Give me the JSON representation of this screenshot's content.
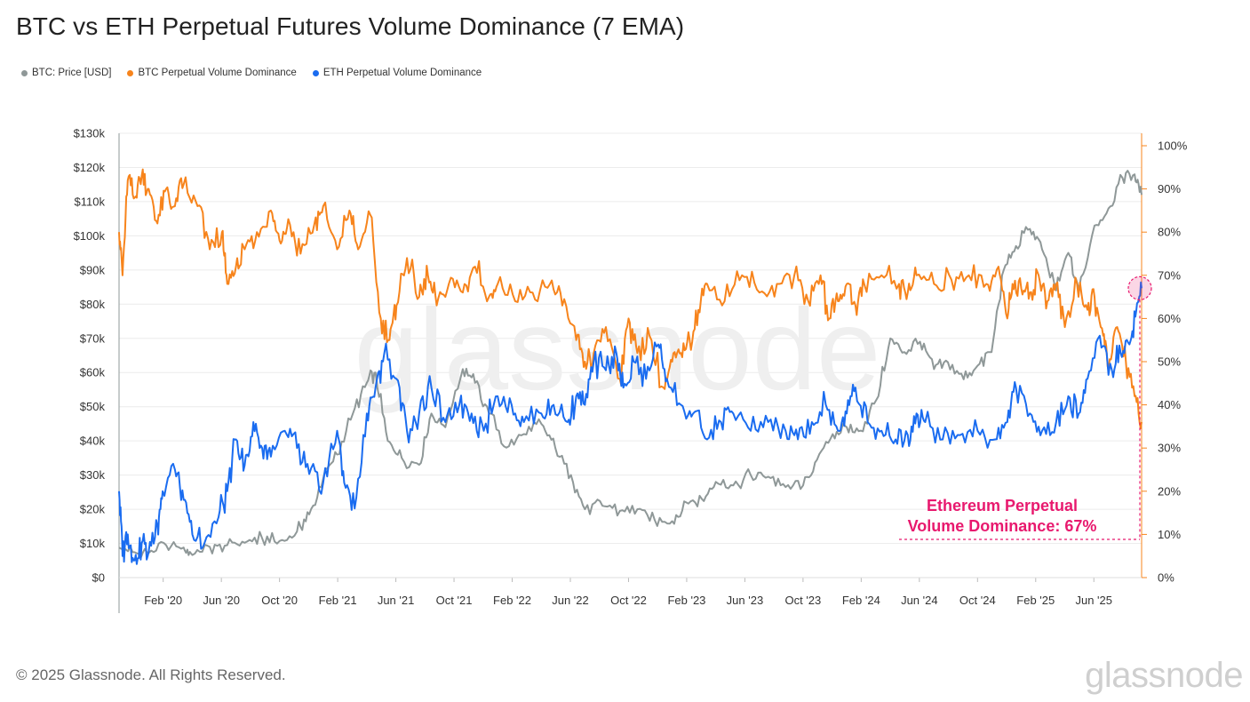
{
  "chart_data": {
    "type": "line",
    "title": "BTC vs ETH Perpetual Futures Volume Dominance (7 EMA)",
    "watermark": "glassnode",
    "legend": [
      {
        "name": "BTC: Price [USD]",
        "color": "#8f9898"
      },
      {
        "name": "BTC Perpetual Volume Dominance",
        "color": "#f7841c"
      },
      {
        "name": "ETH Perpetual Volume Dominance",
        "color": "#1a6cf0"
      }
    ],
    "x_ticks": [
      "Feb '20",
      "Jun '20",
      "Oct '20",
      "Feb '21",
      "Jun '21",
      "Oct '21",
      "Feb '22",
      "Jun '22",
      "Oct '22",
      "Feb '23",
      "Jun '23",
      "Oct '23",
      "Feb '24",
      "Jun '24",
      "Oct '24",
      "Feb '25",
      "Jun '25"
    ],
    "x_range": [
      2019.83,
      2025.69
    ],
    "y_left_ticks": [
      "$0",
      "$10k",
      "$20k",
      "$30k",
      "$40k",
      "$50k",
      "$60k",
      "$70k",
      "$80k",
      "$90k",
      "$100k",
      "$110k",
      "$120k",
      "$130k"
    ],
    "y_left_range": [
      0,
      130000
    ],
    "y_right_ticks": [
      "0%",
      "10%",
      "20%",
      "30%",
      "40%",
      "50%",
      "60%",
      "70%",
      "80%",
      "90%",
      "100%"
    ],
    "y_right_range": [
      0,
      100
    ],
    "series": [
      {
        "name": "BTC: Price [USD]",
        "axis": "left",
        "color": "#8f9898",
        "x": [
          2019.83,
          2019.92,
          2020.0,
          2020.1,
          2020.2,
          2020.25,
          2020.35,
          2020.45,
          2020.55,
          2020.65,
          2020.75,
          2020.85,
          2020.92,
          2021.0,
          2021.08,
          2021.17,
          2021.25,
          2021.3,
          2021.37,
          2021.45,
          2021.55,
          2021.62,
          2021.7,
          2021.8,
          2021.87,
          2021.95,
          2022.05,
          2022.15,
          2022.25,
          2022.33,
          2022.42,
          2022.5,
          2022.6,
          2022.7,
          2022.8,
          2022.9,
          2023.0,
          2023.08,
          2023.17,
          2023.25,
          2023.35,
          2023.45,
          2023.55,
          2023.65,
          2023.75,
          2023.83,
          2023.92,
          2024.0,
          2024.08,
          2024.17,
          2024.25,
          2024.33,
          2024.42,
          2024.5,
          2024.58,
          2024.67,
          2024.75,
          2024.83,
          2024.9,
          2024.97,
          2025.05,
          2025.12,
          2025.2,
          2025.27,
          2025.33,
          2025.42,
          2025.5,
          2025.58,
          2025.65,
          2025.69
        ],
        "values": [
          8800,
          7400,
          7200,
          9500,
          8800,
          6600,
          9000,
          9500,
          10200,
          11500,
          10700,
          13500,
          18500,
          29000,
          36000,
          48000,
          57000,
          60000,
          40000,
          35000,
          33000,
          48000,
          44000,
          61000,
          57000,
          48000,
          38000,
          42000,
          45000,
          38000,
          30000,
          20000,
          21000,
          19500,
          20000,
          16800,
          16500,
          22000,
          23000,
          28000,
          27000,
          30000,
          29500,
          26500,
          27000,
          34500,
          42000,
          44000,
          43000,
          52000,
          70000,
          66000,
          69000,
          61000,
          63000,
          58000,
          62000,
          66000,
          90000,
          97000,
          102000,
          96000,
          84000,
          95000,
          84000,
          103000,
          108000,
          117000,
          118000,
          112000
        ]
      },
      {
        "name": "BTC Perpetual Volume Dominance",
        "axis": "right",
        "color": "#f7841c",
        "x": [
          2019.83,
          2019.85,
          2019.88,
          2019.92,
          2019.96,
          2020.0,
          2020.05,
          2020.1,
          2020.15,
          2020.2,
          2020.28,
          2020.35,
          2020.42,
          2020.45,
          2020.5,
          2020.55,
          2020.62,
          2020.7,
          2020.75,
          2020.8,
          2020.87,
          2020.95,
          2021.0,
          2021.08,
          2021.15,
          2021.2,
          2021.27,
          2021.33,
          2021.38,
          2021.42,
          2021.48,
          2021.55,
          2021.6,
          2021.65,
          2021.72,
          2021.8,
          2021.87,
          2021.95,
          2022.0,
          2022.1,
          2022.2,
          2022.3,
          2022.37,
          2022.45,
          2022.5,
          2022.55,
          2022.62,
          2022.7,
          2022.75,
          2022.8,
          2022.87,
          2022.95,
          2023.0,
          2023.05,
          2023.1,
          2023.15,
          2023.2,
          2023.3,
          2023.4,
          2023.5,
          2023.6,
          2023.7,
          2023.78,
          2023.85,
          2023.9,
          2023.95,
          2024.0,
          2024.05,
          2024.1,
          2024.2,
          2024.3,
          2024.35,
          2024.4,
          2024.5,
          2024.6,
          2024.7,
          2024.8,
          2024.87,
          2024.92,
          2024.95,
          2025.0,
          2025.05,
          2025.1,
          2025.15,
          2025.2,
          2025.25,
          2025.32,
          2025.38,
          2025.42,
          2025.47,
          2025.5,
          2025.55,
          2025.6,
          2025.65,
          2025.69
        ],
        "values": [
          80,
          70,
          92,
          88,
          93,
          90,
          82,
          90,
          86,
          91,
          86,
          76,
          80,
          68,
          72,
          76,
          80,
          85,
          78,
          83,
          75,
          82,
          86,
          76,
          85,
          76,
          84,
          60,
          55,
          63,
          74,
          65,
          70,
          63,
          68,
          66,
          72,
          65,
          68,
          64,
          66,
          68,
          63,
          55,
          50,
          52,
          58,
          46,
          60,
          52,
          56,
          44,
          50,
          52,
          55,
          62,
          68,
          64,
          70,
          66,
          68,
          70,
          64,
          70,
          60,
          64,
          68,
          63,
          68,
          70,
          68,
          66,
          70,
          68,
          69,
          70,
          68,
          72,
          60,
          68,
          67,
          66,
          70,
          64,
          68,
          58,
          68,
          62,
          65,
          56,
          48,
          58,
          50,
          42,
          36
        ]
      },
      {
        "name": "ETH Perpetual Volume Dominance",
        "axis": "right",
        "color": "#1a6cf0",
        "x": [
          2019.83,
          2019.85,
          2019.88,
          2019.92,
          2019.96,
          2020.0,
          2020.05,
          2020.08,
          2020.15,
          2020.2,
          2020.25,
          2020.32,
          2020.4,
          2020.45,
          2020.5,
          2020.55,
          2020.6,
          2020.65,
          2020.7,
          2020.78,
          2020.85,
          2020.92,
          2021.0,
          2021.08,
          2021.12,
          2021.18,
          2021.25,
          2021.3,
          2021.35,
          2021.42,
          2021.48,
          2021.55,
          2021.62,
          2021.7,
          2021.78,
          2021.85,
          2021.92,
          2022.0,
          2022.08,
          2022.15,
          2022.25,
          2022.32,
          2022.4,
          2022.45,
          2022.5,
          2022.55,
          2022.62,
          2022.68,
          2022.72,
          2022.78,
          2022.85,
          2022.92,
          2022.97,
          2023.05,
          2023.12,
          2023.2,
          2023.28,
          2023.35,
          2023.45,
          2023.55,
          2023.65,
          2023.72,
          2023.8,
          2023.88,
          2023.95,
          2024.0,
          2024.05,
          2024.12,
          2024.2,
          2024.28,
          2024.35,
          2024.4,
          2024.45,
          2024.55,
          2024.65,
          2024.75,
          2024.85,
          2024.92,
          2024.97,
          2025.05,
          2025.12,
          2025.2,
          2025.27,
          2025.33,
          2025.38,
          2025.45,
          2025.52,
          2025.57,
          2025.62,
          2025.66,
          2025.69
        ],
        "values": [
          20,
          5,
          10,
          4,
          8,
          6,
          12,
          20,
          25,
          18,
          10,
          8,
          14,
          20,
          32,
          26,
          36,
          30,
          28,
          34,
          30,
          24,
          22,
          34,
          22,
          16,
          38,
          44,
          52,
          46,
          34,
          38,
          44,
          36,
          40,
          38,
          34,
          42,
          40,
          36,
          38,
          40,
          36,
          42,
          40,
          50,
          48,
          52,
          44,
          50,
          46,
          54,
          46,
          40,
          38,
          32,
          36,
          38,
          34,
          36,
          34,
          32,
          36,
          40,
          34,
          38,
          44,
          36,
          34,
          32,
          33,
          38,
          36,
          32,
          33,
          34,
          32,
          36,
          44,
          38,
          34,
          36,
          42,
          38,
          46,
          56,
          48,
          52,
          54,
          62,
          67
        ]
      }
    ],
    "annotation": {
      "line1": "Ethereum Perpetual",
      "line2": "Volume Dominance: 67%",
      "value": 67,
      "color": "#e8196e"
    }
  },
  "footer": {
    "copyright": "© 2025 Glassnode. All Rights Reserved.",
    "brand": "glassnode"
  }
}
